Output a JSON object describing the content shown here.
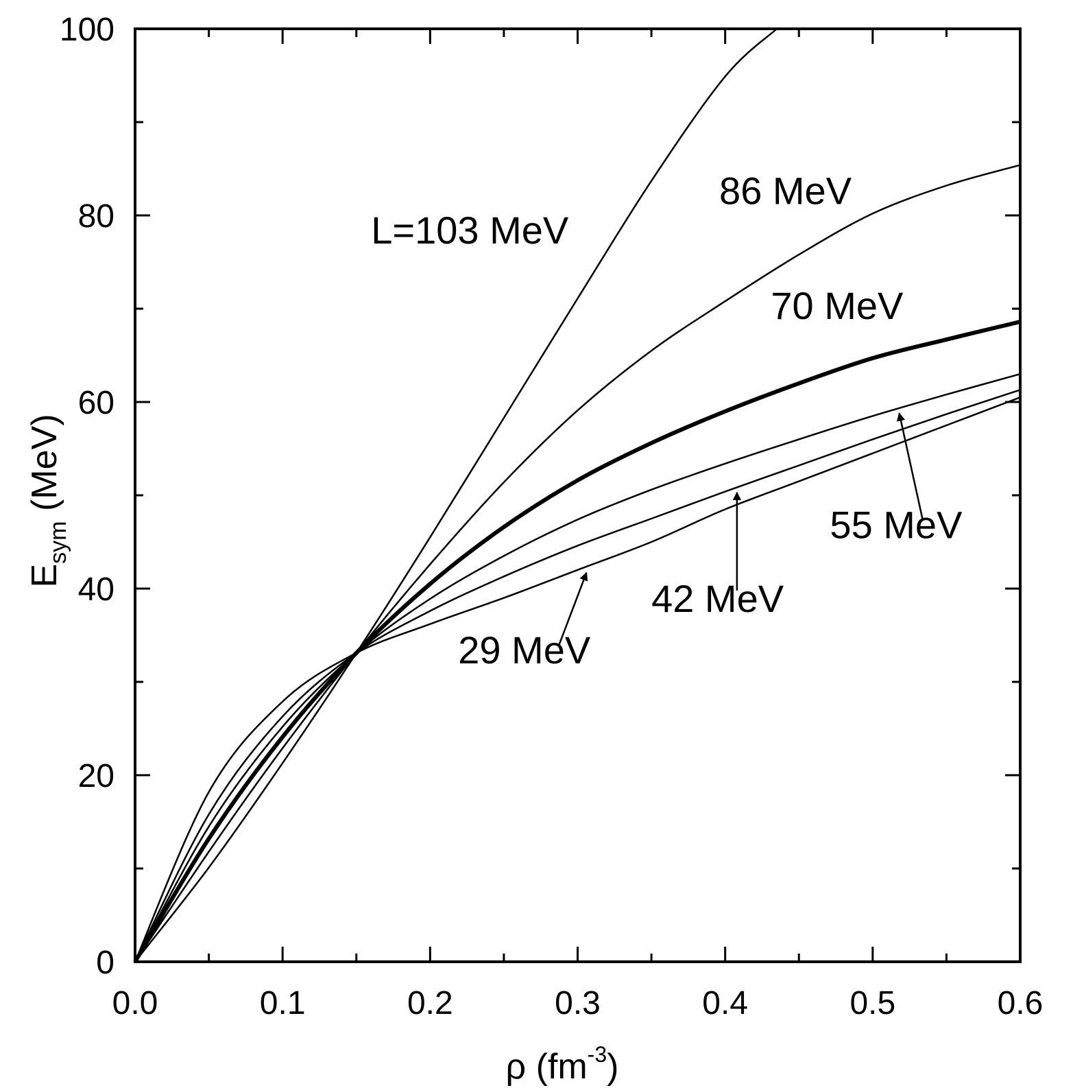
{
  "chart_data": {
    "type": "line",
    "xlabel": {
      "main": "ρ (fm",
      "sup": "-3",
      "close": ")"
    },
    "ylabel": {
      "main": "E",
      "sub": "sym",
      "rest": " (MeV)"
    },
    "xlim": [
      0,
      0.6
    ],
    "ylim": [
      0,
      100
    ],
    "xticks": [
      "0.0",
      "0.1",
      "0.2",
      "0.3",
      "0.4",
      "0.5",
      "0.6"
    ],
    "xtick_values": [
      0,
      0.1,
      0.2,
      0.3,
      0.4,
      0.5,
      0.6
    ],
    "yticks": [
      "0",
      "20",
      "40",
      "60",
      "80",
      "100"
    ],
    "ytick_values": [
      0,
      20,
      40,
      60,
      80,
      100
    ],
    "grid": false,
    "legend": "none",
    "series": [
      {
        "name": "L=103 MeV",
        "bold": false,
        "x": [
          0,
          0.05,
          0.1,
          0.15,
          0.2,
          0.25,
          0.3,
          0.35,
          0.4,
          0.435
        ],
        "y": [
          0,
          10.1,
          21.3,
          33.1,
          45.5,
          58.3,
          71.1,
          83.7,
          94.9,
          100
        ]
      },
      {
        "name": "86 MeV",
        "bold": false,
        "x": [
          0,
          0.05,
          0.1,
          0.15,
          0.2,
          0.25,
          0.3,
          0.35,
          0.4,
          0.45,
          0.5,
          0.55,
          0.6
        ],
        "y": [
          0,
          11.8,
          22.9,
          33.1,
          42.6,
          51.4,
          59.1,
          65.5,
          70.8,
          75.8,
          80.2,
          83.2,
          85.4
        ]
      },
      {
        "name": "70 MeV",
        "bold": true,
        "x": [
          0,
          0.05,
          0.1,
          0.15,
          0.2,
          0.25,
          0.3,
          0.35,
          0.4,
          0.45,
          0.5,
          0.55,
          0.6
        ],
        "y": [
          0,
          13.2,
          24.1,
          33.1,
          40.5,
          46.6,
          51.6,
          55.6,
          59.0,
          62.0,
          64.7,
          66.7,
          68.6
        ]
      },
      {
        "name": "55 MeV",
        "bold": false,
        "x": [
          0,
          0.05,
          0.1,
          0.15,
          0.2,
          0.25,
          0.3,
          0.35,
          0.4,
          0.45,
          0.5,
          0.55,
          0.6
        ],
        "y": [
          0,
          14.5,
          25.2,
          33.1,
          38.9,
          43.5,
          47.4,
          50.6,
          53.4,
          56.0,
          58.5,
          60.8,
          63.0
        ]
      },
      {
        "name": "42 MeV",
        "bold": false,
        "x": [
          0,
          0.05,
          0.1,
          0.15,
          0.2,
          0.25,
          0.3,
          0.35,
          0.4,
          0.45,
          0.5,
          0.55,
          0.6
        ],
        "y": [
          0,
          15.8,
          26.3,
          33.1,
          37.6,
          41.3,
          44.6,
          47.5,
          50.4,
          53.2,
          56.0,
          58.7,
          61.3
        ]
      },
      {
        "name": "29 MeV",
        "bold": false,
        "x": [
          0,
          0.05,
          0.1,
          0.15,
          0.2,
          0.25,
          0.3,
          0.35,
          0.4,
          0.45,
          0.5,
          0.55,
          0.6
        ],
        "y": [
          0,
          18.2,
          27.9,
          33.1,
          36.2,
          39.0,
          42.0,
          45.0,
          48.5,
          51.5,
          54.5,
          57.5,
          60.5
        ]
      }
    ],
    "annotations": [
      {
        "text": "L=103 MeV",
        "x": 0.16,
        "y": 77.0
      },
      {
        "text": "86 MeV",
        "x": 0.396,
        "y": 81.2
      },
      {
        "text": "70 MeV",
        "x": 0.431,
        "y": 68.9
      },
      {
        "text": "55 MeV",
        "x": 0.471,
        "y": 45.4
      },
      {
        "text": "42 MeV",
        "x": 0.35,
        "y": 37.5
      },
      {
        "text": "29 MeV",
        "x": 0.219,
        "y": 32.0
      }
    ],
    "arrows": [
      {
        "series": "55 MeV",
        "from": [
          0.534,
          47.3
        ],
        "to": [
          0.518,
          58.8
        ]
      },
      {
        "series": "42 MeV",
        "from": [
          0.408,
          39.8
        ],
        "to": [
          0.408,
          50.3
        ]
      },
      {
        "series": "29 MeV",
        "from": [
          0.287,
          33.8
        ],
        "to": [
          0.306,
          41.7
        ]
      }
    ]
  }
}
